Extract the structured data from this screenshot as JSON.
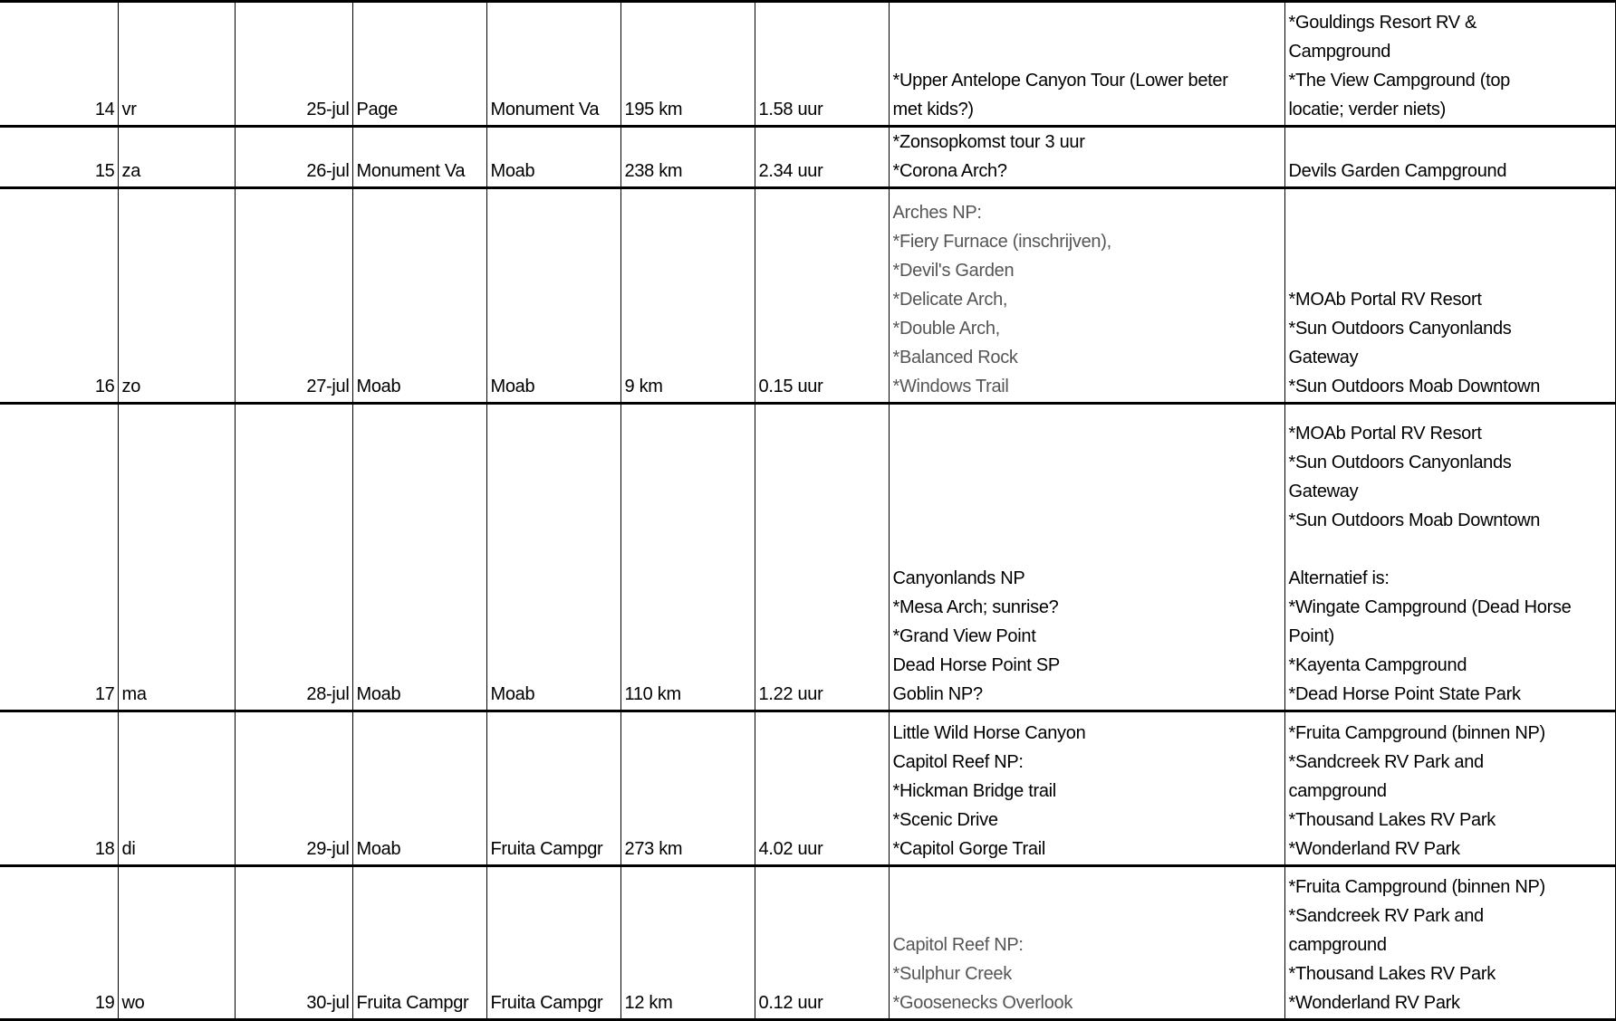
{
  "rows": [
    {
      "nr": "14",
      "day": "vr",
      "date": "25-jul",
      "from": "Page",
      "to": "Monument Va",
      "distance": "195 km",
      "duration": "1.58 uur",
      "activities": "*Upper Antelope Canyon Tour (Lower beter\nmet kids?)",
      "activities_gray": false,
      "campsites": "*Gouldings Resort RV &\nCampground\n*The View Campground (top\nlocatie; verder niets)"
    },
    {
      "nr": "15",
      "day": "za",
      "date": "26-jul",
      "from": "Monument Va",
      "to": "Moab",
      "distance": "238 km",
      "duration": "2.34 uur",
      "activities": "*Zonsopkomst tour 3 uur\n*Corona Arch?",
      "activities_gray": false,
      "campsites": "Devils Garden Campground"
    },
    {
      "nr": "16",
      "day": "zo",
      "date": "27-jul",
      "from": "Moab",
      "to": "Moab",
      "distance": "9 km",
      "duration": "0.15 uur",
      "activities": "Arches NP:\n*Fiery Furnace (inschrijven),\n*Devil's Garden\n*Delicate Arch,\n*Double Arch,\n*Balanced Rock\n*Windows Trail",
      "activities_gray": true,
      "campsites": "*MOAb Portal RV Resort\n*Sun Outdoors Canyonlands\nGateway\n*Sun Outdoors Moab Downtown"
    },
    {
      "nr": "17",
      "day": "ma",
      "date": "28-jul",
      "from": "Moab",
      "to": "Moab",
      "distance": "110 km",
      "duration": "1.22 uur",
      "activities": "Canyonlands NP\n*Mesa Arch; sunrise?\n*Grand View Point\nDead Horse Point SP\nGoblin NP?",
      "activities_gray": false,
      "campsites": "*MOAb Portal RV Resort\n*Sun Outdoors Canyonlands\nGateway\n*Sun Outdoors Moab Downtown\n\nAlternatief is:\n*Wingate Campground (Dead Horse\nPoint)\n*Kayenta Campground\n*Dead Horse Point State Park"
    },
    {
      "nr": "18",
      "day": "di",
      "date": "29-jul",
      "from": "Moab",
      "to": "Fruita Campgr",
      "distance": "273 km",
      "duration": "4.02 uur",
      "activities": "Little Wild Horse Canyon\nCapitol Reef NP:\n*Hickman Bridge trail\n*Scenic Drive\n*Capitol Gorge Trail",
      "activities_gray": false,
      "campsites": "*Fruita Campground (binnen NP)\n*Sandcreek RV Park and\ncampground\n*Thousand Lakes RV Park\n*Wonderland RV Park"
    },
    {
      "nr": "19",
      "day": "wo",
      "date": "30-jul",
      "from": "Fruita Campgr",
      "to": "Fruita Campgr",
      "distance": "12 km",
      "duration": "0.12 uur",
      "activities": "Capitol Reef NP:\n*Sulphur Creek\n*Goosenecks Overlook",
      "activities_gray": true,
      "campsites": "*Fruita Campground (binnen NP)\n*Sandcreek RV Park and\ncampground\n*Thousand Lakes RV Park\n*Wonderland RV Park"
    }
  ]
}
